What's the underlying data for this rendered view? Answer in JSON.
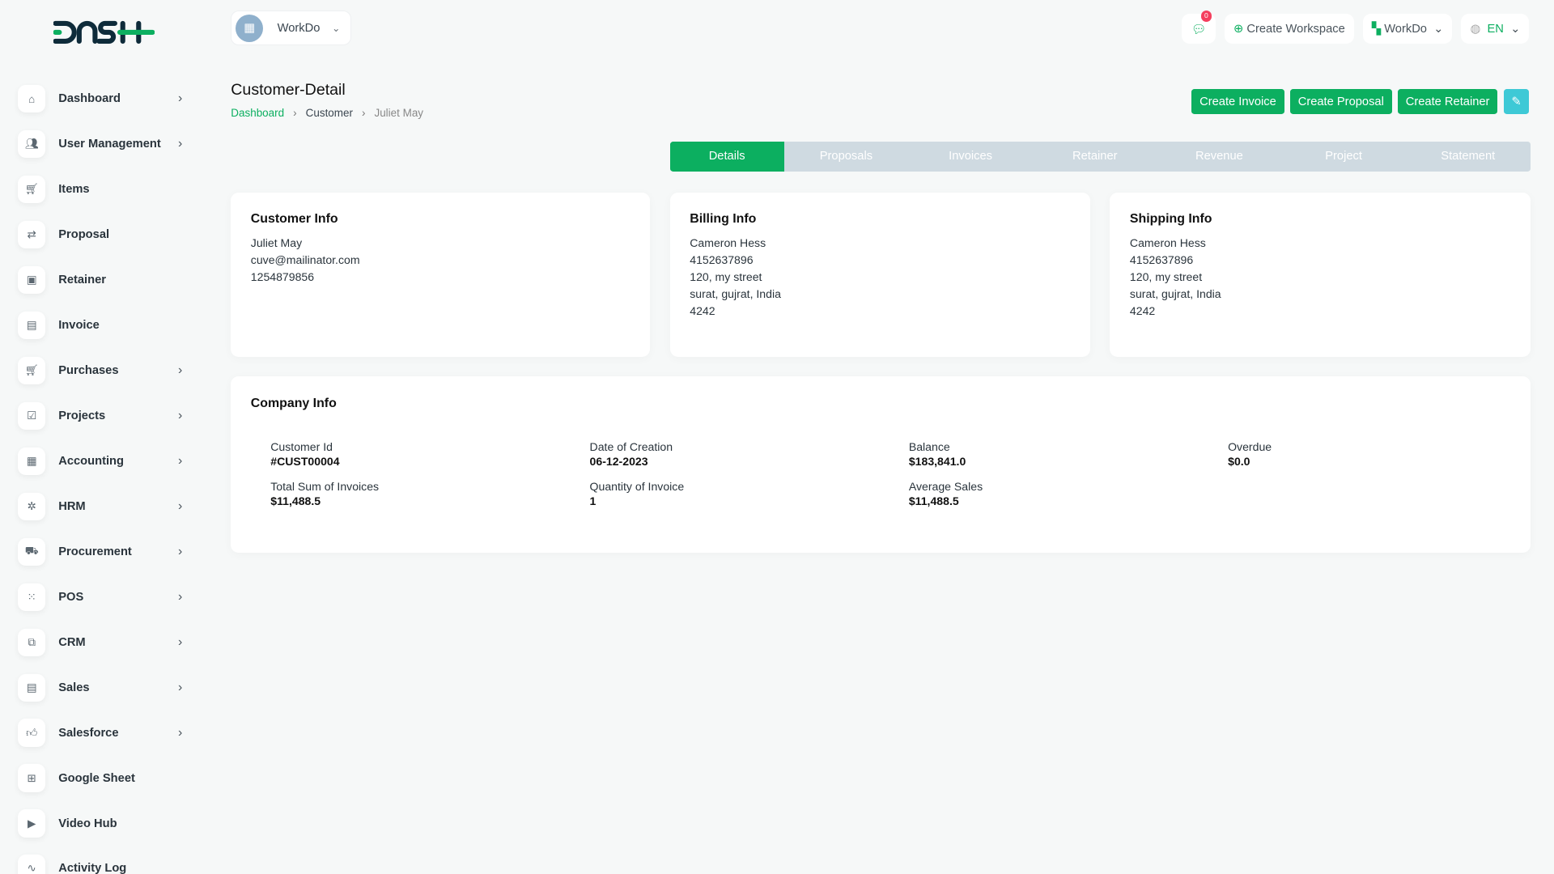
{
  "brand": {
    "logo": "DASH",
    "accent": "#0caf60"
  },
  "header": {
    "workspace": "WorkDo",
    "notifications": "0",
    "create_workspace": "Create Workspace",
    "workspace_switch": "WorkDo",
    "language": "EN"
  },
  "sidebar": {
    "items": [
      {
        "label": "Dashboard",
        "icon": "home-icon",
        "chevron": true
      },
      {
        "label": "User Management",
        "icon": "users-icon",
        "chevron": true
      },
      {
        "label": "Items",
        "icon": "cart-icon",
        "chevron": false
      },
      {
        "label": "Proposal",
        "icon": "proposal-icon",
        "chevron": false
      },
      {
        "label": "Retainer",
        "icon": "retainer-icon",
        "chevron": false
      },
      {
        "label": "Invoice",
        "icon": "invoice-icon",
        "chevron": false
      },
      {
        "label": "Purchases",
        "icon": "cart-icon",
        "chevron": true
      },
      {
        "label": "Projects",
        "icon": "checkbox-icon",
        "chevron": true
      },
      {
        "label": "Accounting",
        "icon": "grid-icon",
        "chevron": true
      },
      {
        "label": "HRM",
        "icon": "hrm-icon",
        "chevron": true
      },
      {
        "label": "Procurement",
        "icon": "procurement-icon",
        "chevron": true
      },
      {
        "label": "POS",
        "icon": "dots-grid-icon",
        "chevron": true
      },
      {
        "label": "CRM",
        "icon": "crm-icon",
        "chevron": true
      },
      {
        "label": "Sales",
        "icon": "file-icon",
        "chevron": true
      },
      {
        "label": "Salesforce",
        "icon": "thumbs-up-icon",
        "chevron": true
      },
      {
        "label": "Google Sheet",
        "icon": "table-icon",
        "chevron": false
      },
      {
        "label": "Video Hub",
        "icon": "video-icon",
        "chevron": false
      },
      {
        "label": "Activity Log",
        "icon": "activity-icon",
        "chevron": false
      }
    ]
  },
  "page": {
    "title": "Customer-Detail",
    "breadcrumb": [
      "Dashboard",
      "Customer",
      "Juliet May"
    ]
  },
  "actions": {
    "create_invoice": "Create Invoice",
    "create_proposal": "Create Proposal",
    "create_retainer": "Create Retainer"
  },
  "tabs": [
    "Details",
    "Proposals",
    "Invoices",
    "Retainer",
    "Revenue",
    "Project",
    "Statement"
  ],
  "customer_info": {
    "title": "Customer Info",
    "lines": [
      "Juliet May",
      "cuve@mailinator.com",
      "1254879856"
    ]
  },
  "billing_info": {
    "title": "Billing Info",
    "lines": [
      "Cameron Hess",
      "4152637896",
      "120, my street",
      "surat, gujrat, India",
      "4242"
    ]
  },
  "shipping_info": {
    "title": "Shipping Info",
    "lines": [
      "Cameron Hess",
      "4152637896",
      "120, my street",
      "surat, gujrat, India",
      "4242"
    ]
  },
  "company_info": {
    "title": "Company Info",
    "fields": [
      {
        "label": "Customer Id",
        "value": "#CUST00004"
      },
      {
        "label": "Date of Creation",
        "value": "06-12-2023"
      },
      {
        "label": "Balance",
        "value": "$183,841.0"
      },
      {
        "label": "Overdue",
        "value": "$0.0"
      },
      {
        "label": "Total Sum of Invoices",
        "value": "$11,488.5"
      },
      {
        "label": "Quantity of Invoice",
        "value": "1"
      },
      {
        "label": "Average Sales",
        "value": "$11,488.5"
      }
    ]
  }
}
